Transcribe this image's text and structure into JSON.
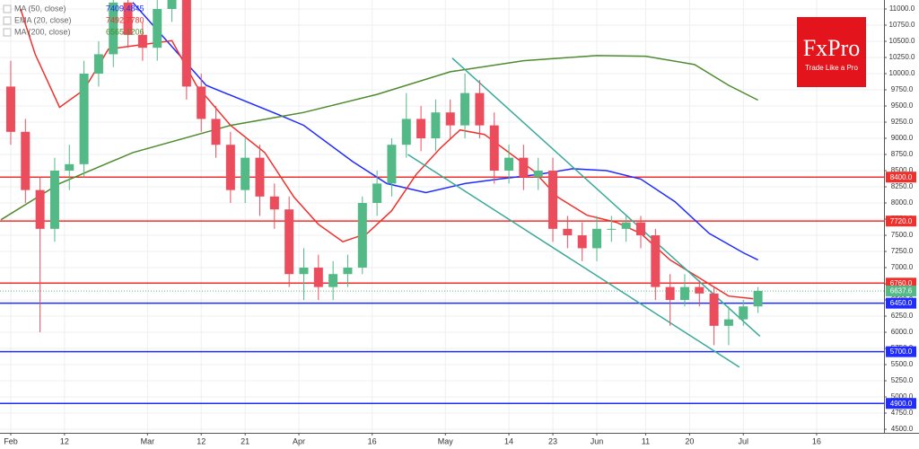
{
  "chart_data": {
    "type": "candlestick",
    "x": [
      0,
      3,
      6,
      9,
      12,
      15,
      18,
      21,
      24,
      27,
      30,
      33,
      36,
      39,
      42,
      45,
      48,
      51,
      54,
      57,
      60,
      63,
      66,
      69,
      72,
      75,
      78,
      81,
      84,
      87,
      90,
      93,
      96,
      99,
      102,
      105,
      108,
      111,
      114,
      117,
      120,
      123,
      126,
      129,
      132,
      135,
      138,
      141,
      144,
      147,
      150,
      153
    ],
    "open": [
      9800,
      9100,
      8200,
      7600,
      8500,
      8600,
      10000,
      10300,
      11100,
      10600,
      10400,
      11000,
      11200,
      9800,
      9300,
      8900,
      8200,
      8700,
      8100,
      7900,
      6900,
      7000,
      6700,
      6900,
      7000,
      8000,
      8300,
      8900,
      9300,
      9000,
      9400,
      9200,
      9700,
      9200,
      8500,
      8700,
      8400,
      8500,
      7600,
      7500,
      7300,
      7600,
      7600,
      7700,
      7500,
      6700,
      6500,
      6700,
      6600,
      6100,
      6200,
      6400
    ],
    "high": [
      10200,
      9300,
      8400,
      8700,
      8900,
      10200,
      10500,
      11300,
      11300,
      10800,
      11200,
      11500,
      11400,
      10000,
      9500,
      9100,
      9000,
      8900,
      8300,
      8100,
      7300,
      7200,
      7100,
      7200,
      8100,
      8500,
      9000,
      9700,
      9500,
      9600,
      9600,
      10000,
      9900,
      9400,
      8900,
      8900,
      8700,
      8700,
      7800,
      7700,
      7800,
      7800,
      7800,
      7800,
      7600,
      6900,
      6900,
      6800,
      6700,
      6400,
      6500,
      6700
    ],
    "low": [
      8900,
      8000,
      6000,
      7400,
      8200,
      8400,
      9800,
      10100,
      10400,
      10200,
      10200,
      10800,
      9600,
      9100,
      8700,
      8000,
      8000,
      7800,
      7600,
      6700,
      6500,
      6500,
      6500,
      6700,
      6900,
      7800,
      8100,
      8700,
      8800,
      8800,
      9000,
      9000,
      9000,
      8300,
      8300,
      8200,
      8200,
      7400,
      7300,
      7100,
      7100,
      7400,
      7400,
      7300,
      6500,
      6100,
      6400,
      6400,
      5800,
      5800,
      6100,
      6300
    ],
    "close": [
      9100,
      8200,
      7600,
      8500,
      8600,
      10000,
      10300,
      11100,
      10600,
      10400,
      11000,
      11200,
      9800,
      9300,
      8900,
      8200,
      8700,
      8100,
      7900,
      6900,
      7000,
      6700,
      6900,
      7000,
      8000,
      8300,
      8900,
      9300,
      9000,
      9400,
      9200,
      9700,
      9200,
      8500,
      8700,
      8400,
      8500,
      7600,
      7500,
      7300,
      7600,
      7600,
      7700,
      7500,
      6700,
      6500,
      6700,
      6600,
      6100,
      6200,
      6400,
      6640
    ],
    "up_color": "#53b987",
    "down_color": "#eb4d5c",
    "series": [
      {
        "name": "MA (50, close)",
        "legend_label": "7409.4845",
        "color": "#1f2bff",
        "x": [
          25,
          40,
          55,
          60,
          70,
          77,
          85,
          93,
          100,
          108,
          115,
          122,
          129,
          136,
          143,
          150,
          153
        ],
        "values": [
          11100,
          9820,
          9360,
          9200,
          8640,
          8300,
          8160,
          8300,
          8370,
          8440,
          8530,
          8500,
          8370,
          8020,
          7530,
          7230,
          7120
        ]
      },
      {
        "name": "EMA (20, close)",
        "legend_label": "7492.7780",
        "color": "#f0302c",
        "x": [
          2,
          5,
          10,
          15,
          20,
          27,
          33,
          38,
          45,
          52,
          58,
          63,
          68,
          73,
          78,
          83,
          88,
          92,
          97,
          102,
          107,
          112,
          118,
          124,
          129,
          135,
          141,
          147,
          152
        ],
        "values": [
          11000,
          10300,
          9480,
          9750,
          10380,
          10450,
          10510,
          9820,
          9200,
          8780,
          8090,
          7670,
          7400,
          7530,
          7880,
          8440,
          8850,
          9130,
          9060,
          8780,
          8500,
          8090,
          7810,
          7700,
          7530,
          7120,
          6840,
          6560,
          6520
        ]
      },
      {
        "name": "MA (200, close)",
        "legend_label": "6565.1206",
        "color": "#4e8a2e",
        "x": [
          -2,
          10,
          25,
          45,
          60,
          75,
          90,
          105,
          120,
          130,
          140,
          147,
          153
        ],
        "values": [
          7740,
          8300,
          8780,
          9200,
          9400,
          9680,
          10030,
          10200,
          10280,
          10270,
          10140,
          9820,
          9590
        ]
      }
    ],
    "trendlines": [
      {
        "x": [
          90.4,
          153.4
        ],
        "values": [
          10240,
          5940
        ]
      },
      {
        "x": [
          81.3,
          149.2
        ],
        "values": [
          8750,
          5460
        ]
      }
    ],
    "trendline_color": "#3aa89a",
    "levels": [
      {
        "value": 8400,
        "label": "8400.0",
        "color": "#f0302c"
      },
      {
        "value": 7720,
        "label": "7720.0",
        "color": "#f0302c"
      },
      {
        "value": 6760,
        "label": "6760.0",
        "color": "#f0302c"
      },
      {
        "value": 6450,
        "label": "6450.0",
        "color": "#1f2bff"
      },
      {
        "value": 5700,
        "label": "5700.0",
        "color": "#1f2bff"
      },
      {
        "value": 4900,
        "label": "4900.0",
        "color": "#1f2bff"
      }
    ],
    "last_price": {
      "value": 6637.6,
      "label": "6637.6",
      "color": "#53b987"
    },
    "xlim": [
      -2.2,
      178.8
    ],
    "ylim": [
      4445,
      11139
    ],
    "xticks": [
      {
        "value": 0,
        "label": "Feb"
      },
      {
        "value": 11,
        "label": "12"
      },
      {
        "value": 28,
        "label": "Mar"
      },
      {
        "value": 39,
        "label": "12"
      },
      {
        "value": 48,
        "label": "21"
      },
      {
        "value": 59,
        "label": "Apr"
      },
      {
        "value": 74,
        "label": "16"
      },
      {
        "value": 89,
        "label": "May"
      },
      {
        "value": 102,
        "label": "14"
      },
      {
        "value": 111,
        "label": "23"
      },
      {
        "value": 120,
        "label": "Jun"
      },
      {
        "value": 130,
        "label": "11"
      },
      {
        "value": 139,
        "label": "20"
      },
      {
        "value": 150,
        "label": "Jul"
      },
      {
        "value": 165,
        "label": "16"
      }
    ],
    "yticks": [
      {
        "value": 11000,
        "label": "11000.0"
      },
      {
        "value": 10750,
        "label": "10750.0"
      },
      {
        "value": 10500,
        "label": "10500.0"
      },
      {
        "value": 10250,
        "label": "10250.0"
      },
      {
        "value": 10000,
        "label": "10000.0"
      },
      {
        "value": 9750,
        "label": "9750.0"
      },
      {
        "value": 9500,
        "label": "9500.0"
      },
      {
        "value": 9250,
        "label": "9250.0"
      },
      {
        "value": 9000,
        "label": "9000.0"
      },
      {
        "value": 8750,
        "label": "8750.0"
      },
      {
        "value": 8500,
        "label": "8500.0"
      },
      {
        "value": 8250,
        "label": "8250.0"
      },
      {
        "value": 8000,
        "label": "8000.0"
      },
      {
        "value": 7750,
        "label": "7750.0"
      },
      {
        "value": 7500,
        "label": "7500.0"
      },
      {
        "value": 7250,
        "label": "7250.0"
      },
      {
        "value": 7000,
        "label": "7000.0"
      },
      {
        "value": 6750,
        "label": "6750.0"
      },
      {
        "value": 6500,
        "label": "6500.0"
      },
      {
        "value": 6250,
        "label": "6250.0"
      },
      {
        "value": 6000,
        "label": "6000.0"
      },
      {
        "value": 5750,
        "label": "5750.0"
      },
      {
        "value": 5500,
        "label": "5500.0"
      },
      {
        "value": 5250,
        "label": "5250.0"
      },
      {
        "value": 5000,
        "label": "5000.0"
      },
      {
        "value": 4750,
        "label": "4750.0"
      },
      {
        "value": 4500,
        "label": "4500.0"
      }
    ],
    "grid": true
  },
  "brand": {
    "name": "FxPro",
    "tagline": "Trade Like a Pro"
  }
}
